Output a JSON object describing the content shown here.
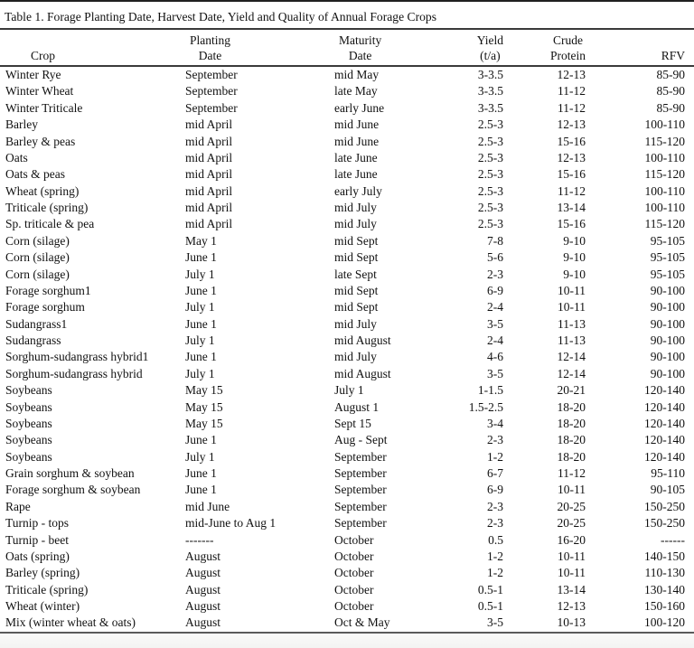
{
  "colors": {
    "ink": "#111111",
    "rule_dark": "#3a3a3a",
    "rule_bottom": "#5a5a5a",
    "page_bg": "#ffffff",
    "footer_bg": "#f3f3f2"
  },
  "table": {
    "title": "Table 1. Forage Planting Date, Harvest Date, Yield and Quality of Annual Forage Crops",
    "columns": [
      {
        "line1": "",
        "line2": "Crop"
      },
      {
        "line1": "Planting",
        "line2": "Date"
      },
      {
        "line1": "Maturity",
        "line2": "Date"
      },
      {
        "line1": "Yield",
        "line2": "(t/a)"
      },
      {
        "line1": "Crude",
        "line2": "Protein"
      },
      {
        "line1": "",
        "line2": "RFV"
      }
    ],
    "rows": [
      [
        "Winter Rye",
        "September",
        "mid May",
        "3-3.5",
        "12-13",
        "85-90"
      ],
      [
        "Winter Wheat",
        "September",
        "late May",
        "3-3.5",
        "11-12",
        "85-90"
      ],
      [
        "Winter Triticale",
        "September",
        "early June",
        "3-3.5",
        "11-12",
        "85-90"
      ],
      [
        "Barley",
        "mid April",
        "mid June",
        "2.5-3",
        "12-13",
        "100-110"
      ],
      [
        "Barley & peas",
        "mid April",
        "mid June",
        "2.5-3",
        "15-16",
        "115-120"
      ],
      [
        "Oats",
        "mid April",
        "late June",
        "2.5-3",
        "12-13",
        "100-110"
      ],
      [
        "Oats & peas",
        "mid April",
        "late June",
        "2.5-3",
        "15-16",
        "115-120"
      ],
      [
        "Wheat (spring)",
        "mid April",
        "early July",
        "2.5-3",
        "11-12",
        "100-110"
      ],
      [
        "Triticale (spring)",
        "mid April",
        "mid July",
        "2.5-3",
        "13-14",
        "100-110"
      ],
      [
        "Sp. triticale & pea",
        "mid April",
        "mid July",
        "2.5-3",
        "15-16",
        "115-120"
      ],
      [
        "Corn (silage)",
        "May 1",
        "mid Sept",
        "7-8",
        "9-10",
        "95-105"
      ],
      [
        "Corn (silage)",
        "June 1",
        "mid Sept",
        "5-6",
        "9-10",
        "95-105"
      ],
      [
        "Corn (silage)",
        "July 1",
        "late Sept",
        "2-3",
        "9-10",
        "95-105"
      ],
      [
        "Forage sorghum1",
        "June 1",
        "mid Sept",
        "6-9",
        "10-11",
        "90-100"
      ],
      [
        "Forage sorghum",
        "July 1",
        "mid Sept",
        "2-4",
        "10-11",
        "90-100"
      ],
      [
        "Sudangrass1",
        "June 1",
        "mid July",
        "3-5",
        "11-13",
        "90-100"
      ],
      [
        "Sudangrass",
        "July 1",
        "mid August",
        "2-4",
        "11-13",
        "90-100"
      ],
      [
        "Sorghum-sudangrass hybrid1",
        "June 1",
        "mid July",
        "4-6",
        "12-14",
        "90-100"
      ],
      [
        "Sorghum-sudangrass hybrid",
        "July 1",
        "mid August",
        "3-5",
        "12-14",
        "90-100"
      ],
      [
        "Soybeans",
        "May 15",
        "July 1",
        "1-1.5",
        "20-21",
        "120-140"
      ],
      [
        "Soybeans",
        "May 15",
        "August 1",
        "1.5-2.5",
        "18-20",
        "120-140"
      ],
      [
        "Soybeans",
        "May 15",
        "Sept 15",
        "3-4",
        "18-20",
        "120-140"
      ],
      [
        "Soybeans",
        "June 1",
        "Aug - Sept",
        "2-3",
        "18-20",
        "120-140"
      ],
      [
        "Soybeans",
        "July 1",
        "September",
        "1-2",
        "18-20",
        "120-140"
      ],
      [
        "Grain sorghum & soybean",
        "June 1",
        "September",
        "6-7",
        "11-12",
        "95-110"
      ],
      [
        "Forage sorghum & soybean",
        "June 1",
        "September",
        "6-9",
        "10-11",
        "90-105"
      ],
      [
        "Rape",
        "mid June",
        "September",
        "2-3",
        "20-25",
        "150-250"
      ],
      [
        "Turnip - tops",
        "mid-June to Aug 1",
        "September",
        "2-3",
        "20-25",
        "150-250"
      ],
      [
        "Turnip - beet",
        "-------",
        "October",
        "0.5",
        "16-20",
        "------"
      ],
      [
        "Oats (spring)",
        "August",
        "October",
        "1-2",
        "10-11",
        "140-150"
      ],
      [
        "Barley (spring)",
        "August",
        "October",
        "1-2",
        "10-11",
        "110-130"
      ],
      [
        "Triticale (spring)",
        "August",
        "October",
        "0.5-1",
        "13-14",
        "130-140"
      ],
      [
        "Wheat (winter)",
        "August",
        "October",
        "0.5-1",
        "12-13",
        "150-160"
      ],
      [
        "Mix (winter wheat & oats)",
        "August",
        "Oct & May",
        "3-5",
        "10-13",
        "100-120"
      ]
    ]
  }
}
